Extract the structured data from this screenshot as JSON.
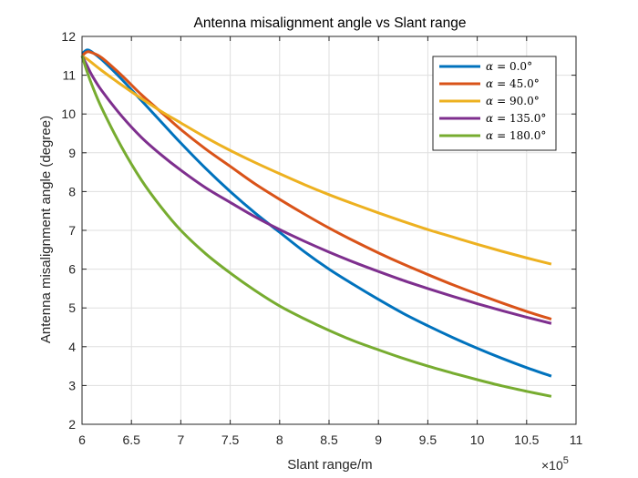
{
  "chart_data": {
    "type": "line",
    "title": "Antenna misalignment angle vs Slant range",
    "xlabel": "Slant range/m",
    "ylabel": "Antenna misalignment angle (degree)",
    "x_multiplier_label": "×10",
    "x_multiplier_exponent": "5",
    "xlim": [
      6,
      11
    ],
    "ylim": [
      2,
      12
    ],
    "xticks": [
      6,
      6.5,
      7,
      7.5,
      8,
      8.5,
      9,
      9.5,
      10,
      10.5,
      11
    ],
    "xtick_labels": [
      "6",
      "6.5",
      "7",
      "7.5",
      "8",
      "8.5",
      "9",
      "9.5",
      "10",
      "10.5",
      "11"
    ],
    "yticks": [
      2,
      3,
      4,
      5,
      6,
      7,
      8,
      9,
      10,
      11,
      12
    ],
    "ytick_labels": [
      "2",
      "3",
      "4",
      "5",
      "6",
      "7",
      "8",
      "9",
      "10",
      "11",
      "12"
    ],
    "grid": true,
    "legend_position": "top-right",
    "x": [
      6.0,
      6.05,
      6.1,
      6.2,
      6.4,
      6.6,
      6.8,
      7.0,
      7.25,
      7.5,
      7.75,
      8.0,
      8.25,
      8.5,
      8.75,
      9.0,
      9.25,
      9.5,
      9.75,
      10.0,
      10.25,
      10.5,
      10.75
    ],
    "series": [
      {
        "name": "α = 0.0°",
        "legend_symbol": "α",
        "legend_value": "= 0.0°",
        "color": "#0072BD",
        "values": [
          11.55,
          11.65,
          11.6,
          11.4,
          10.9,
          10.35,
          9.8,
          9.25,
          8.6,
          8.0,
          7.45,
          6.95,
          6.45,
          6.0,
          5.6,
          5.22,
          4.86,
          4.54,
          4.24,
          3.96,
          3.7,
          3.46,
          3.24
        ]
      },
      {
        "name": "α = 45.0°",
        "legend_symbol": "α",
        "legend_value": "= 45.0°",
        "color": "#D95319",
        "values": [
          11.5,
          11.6,
          11.58,
          11.45,
          11.0,
          10.5,
          10.05,
          9.6,
          9.1,
          8.65,
          8.2,
          7.8,
          7.42,
          7.06,
          6.73,
          6.42,
          6.13,
          5.86,
          5.6,
          5.36,
          5.13,
          4.91,
          4.71
        ]
      },
      {
        "name": "α = 90.0°",
        "legend_symbol": "α",
        "legend_value": "= 90.0°",
        "color": "#EDB120",
        "values": [
          11.5,
          11.42,
          11.32,
          11.12,
          10.75,
          10.4,
          10.07,
          9.77,
          9.4,
          9.06,
          8.75,
          8.46,
          8.18,
          7.92,
          7.68,
          7.45,
          7.23,
          7.02,
          6.83,
          6.64,
          6.46,
          6.29,
          6.13
        ]
      },
      {
        "name": "α = 135.0°",
        "legend_symbol": "α",
        "legend_value": "= 135.0°",
        "color": "#7E2F8E",
        "values": [
          11.5,
          11.25,
          11.0,
          10.6,
          9.95,
          9.4,
          8.95,
          8.55,
          8.1,
          7.72,
          7.35,
          7.02,
          6.72,
          6.44,
          6.18,
          5.94,
          5.71,
          5.5,
          5.3,
          5.11,
          4.93,
          4.76,
          4.6
        ]
      },
      {
        "name": "α = 180.0°",
        "legend_symbol": "α",
        "legend_value": "= 180.0°",
        "color": "#77AC30",
        "values": [
          11.5,
          11.1,
          10.75,
          10.15,
          9.15,
          8.3,
          7.6,
          7.0,
          6.4,
          5.9,
          5.45,
          5.05,
          4.72,
          4.42,
          4.15,
          3.92,
          3.7,
          3.5,
          3.32,
          3.15,
          2.99,
          2.85,
          2.72
        ]
      }
    ]
  }
}
